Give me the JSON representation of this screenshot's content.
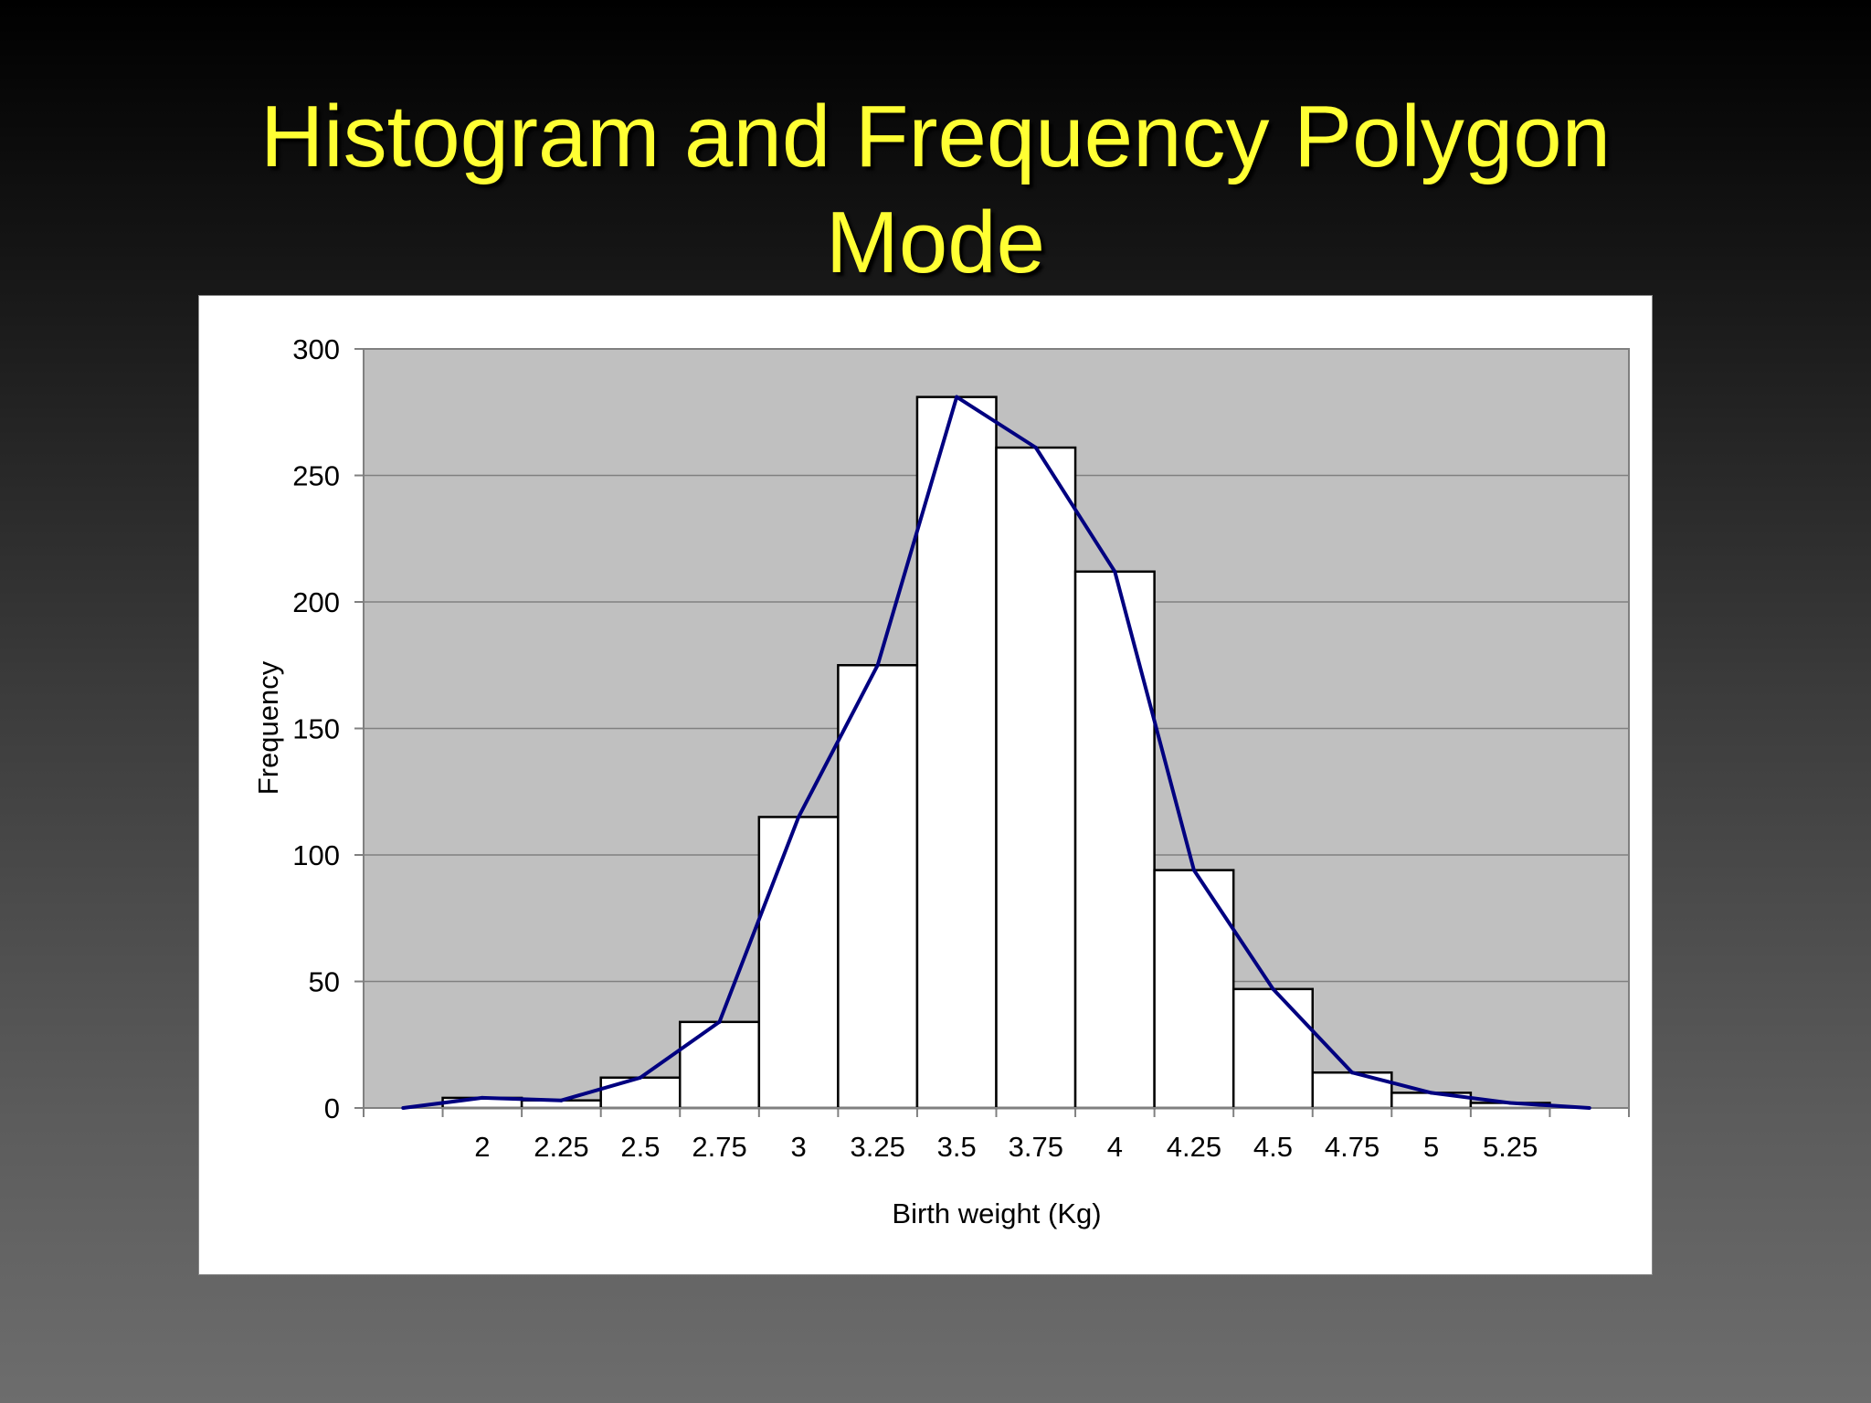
{
  "slide": {
    "title_line1": "Histogram and Frequency Polygon",
    "title_line2": "Mode",
    "title_color": "#ffff33",
    "background": "dark gray gradient"
  },
  "chart_data": {
    "type": "bar",
    "overlay": "line",
    "title": "",
    "xlabel": "Birth weight (Kg)",
    "ylabel": "Frequency",
    "ylim": [
      0,
      300
    ],
    "yticks": [
      0,
      50,
      100,
      150,
      200,
      250,
      300
    ],
    "grid": true,
    "plot_background": "#c0c0c0",
    "categories": [
      "",
      "2",
      "2.25",
      "2.5",
      "2.75",
      "3",
      "3.25",
      "3.5",
      "3.75",
      "4",
      "4.25",
      "4.5",
      "4.75",
      "5",
      "5.25",
      ""
    ],
    "bars": [
      {
        "label": "2",
        "value": 4
      },
      {
        "label": "2.25",
        "value": 3
      },
      {
        "label": "2.5",
        "value": 12
      },
      {
        "label": "2.75",
        "value": 34
      },
      {
        "label": "3",
        "value": 115
      },
      {
        "label": "3.25",
        "value": 175
      },
      {
        "label": "3.5",
        "value": 281
      },
      {
        "label": "3.75",
        "value": 261
      },
      {
        "label": "4",
        "value": 212
      },
      {
        "label": "4.25",
        "value": 94
      },
      {
        "label": "4.5",
        "value": 47
      },
      {
        "label": "4.75",
        "value": 14
      },
      {
        "label": "5",
        "value": 6
      },
      {
        "label": "5.25",
        "value": 2
      }
    ],
    "polygon": [
      0,
      4,
      3,
      12,
      34,
      115,
      175,
      281,
      261,
      212,
      94,
      47,
      14,
      6,
      2,
      0
    ],
    "bar_color": "#ffffff",
    "line_color": "#000080"
  }
}
